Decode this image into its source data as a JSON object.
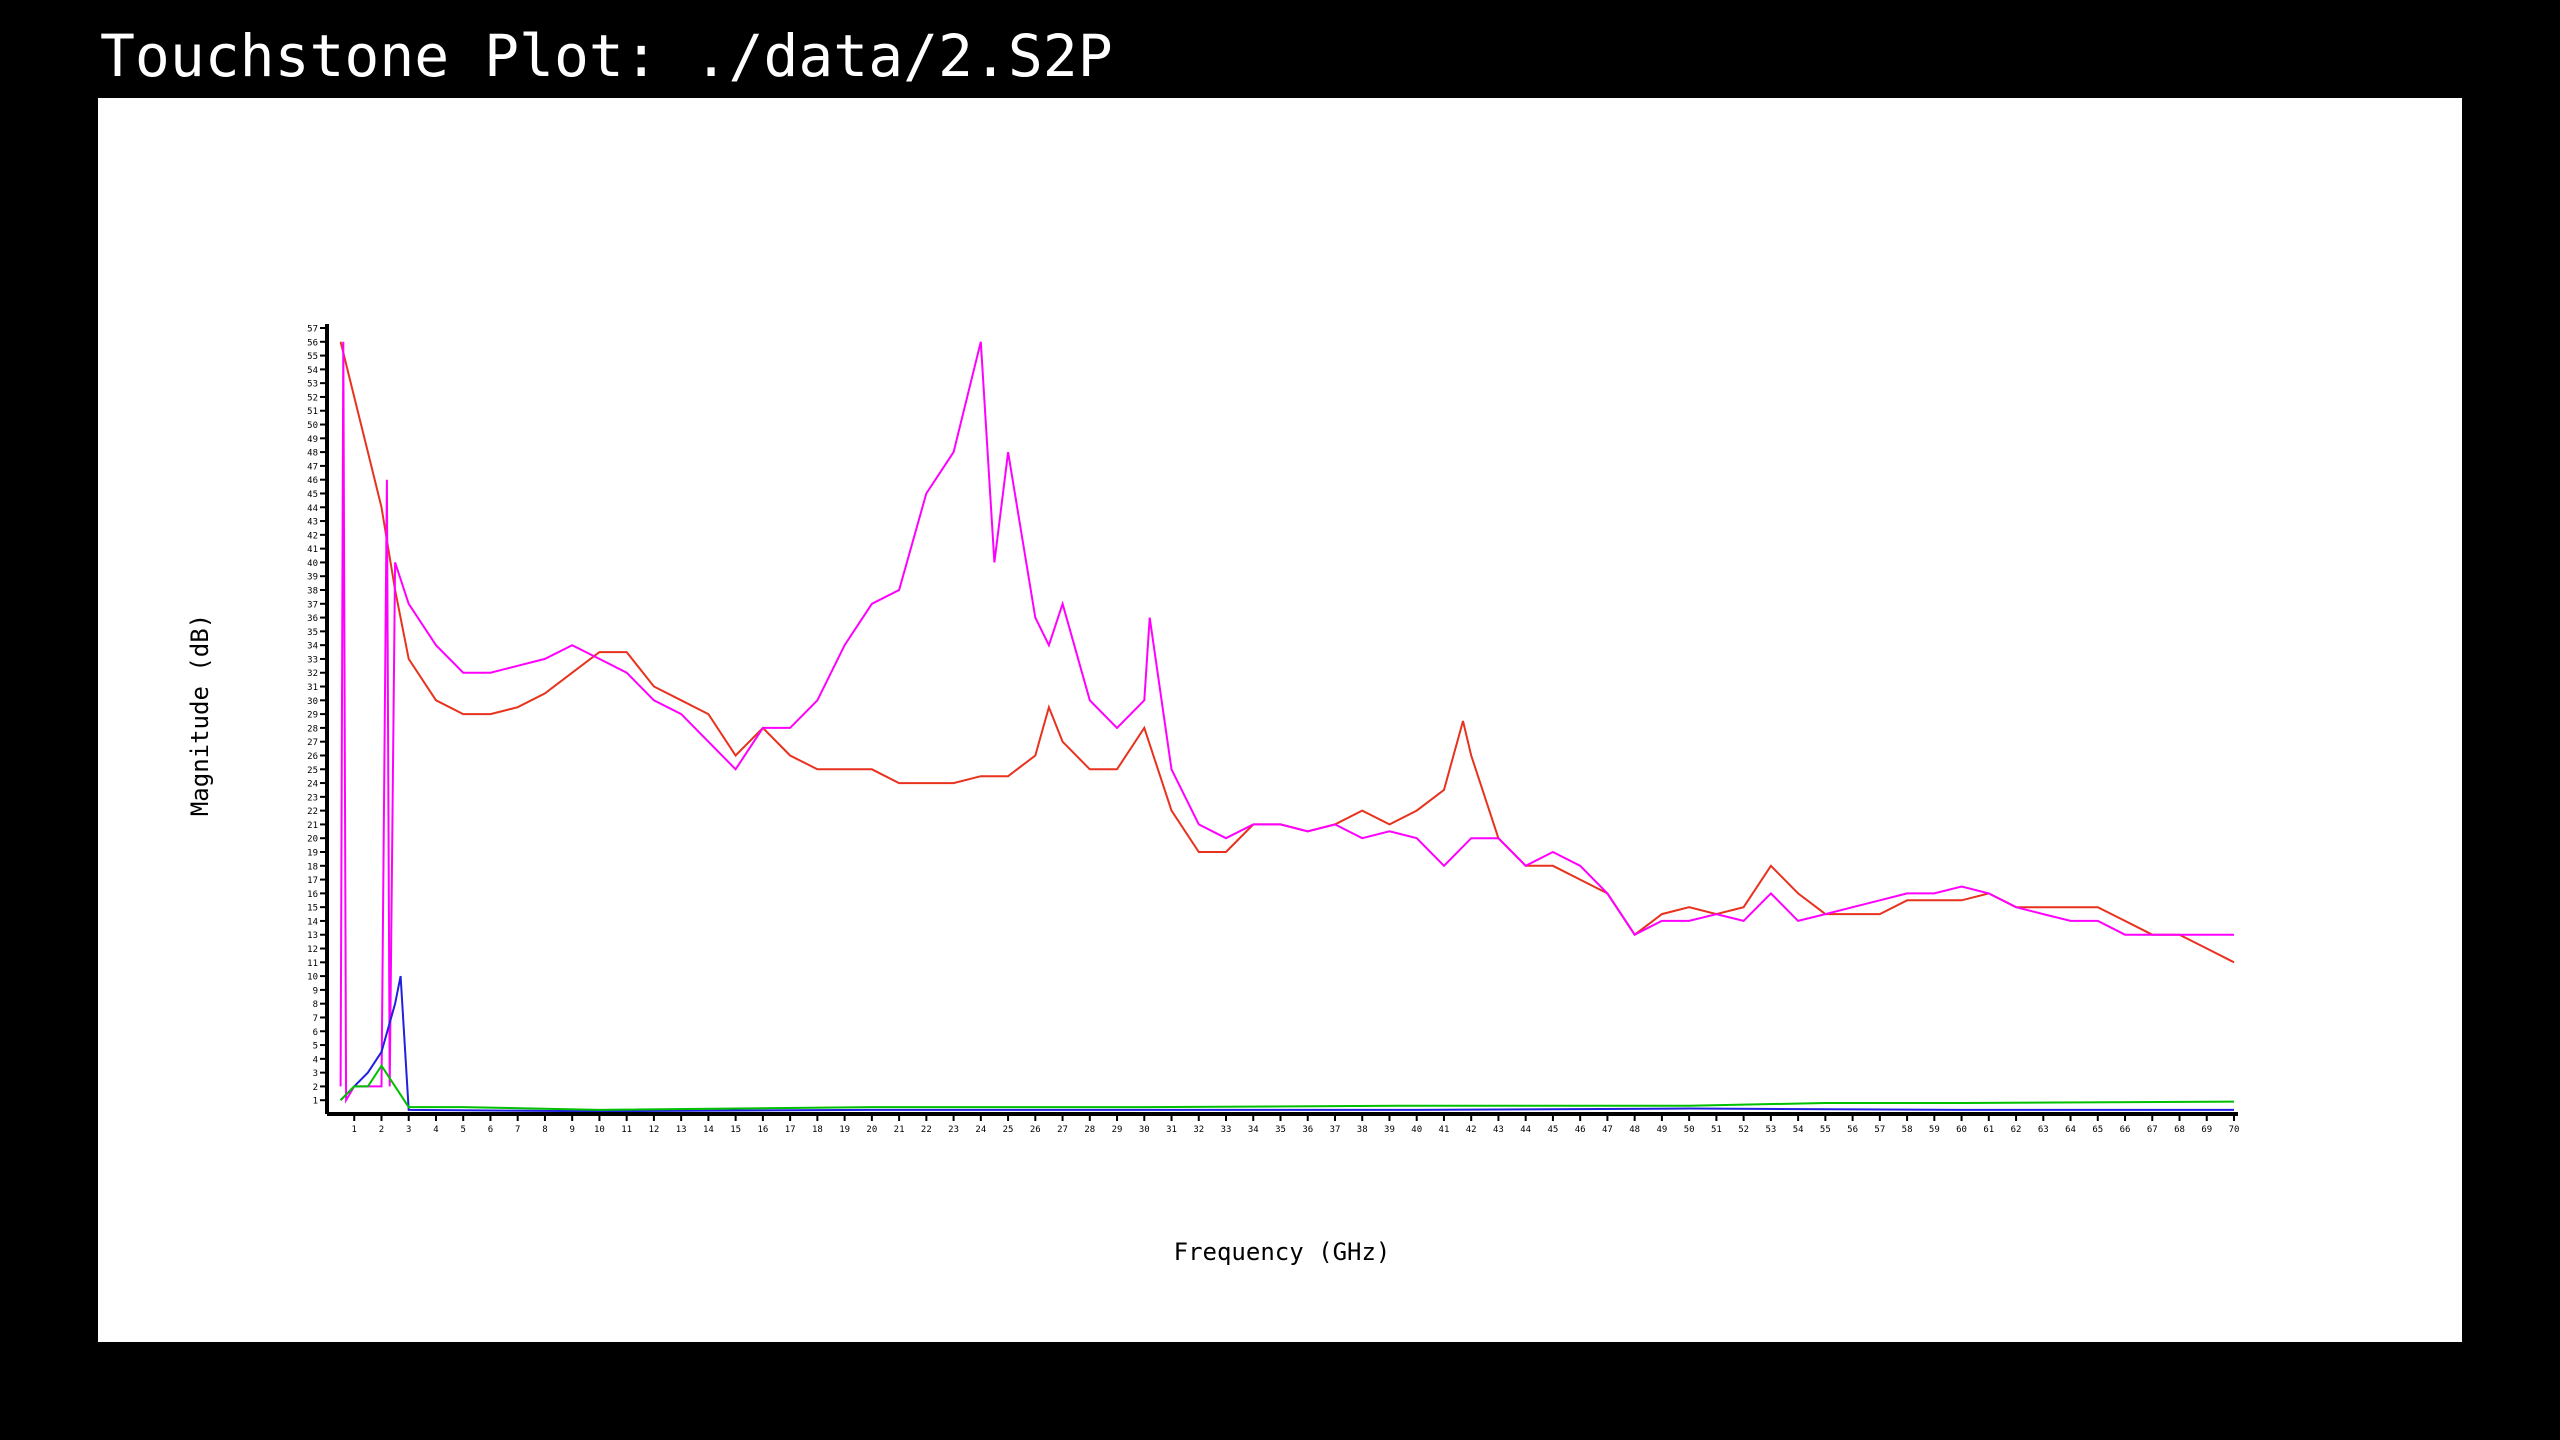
{
  "title": "Touchstone Plot: ./data/2.S2P",
  "chart_data": {
    "type": "line",
    "x_label": "Frequency (GHz)",
    "y_label": "Magnitude (dB)",
    "xlim": [
      0,
      70
    ],
    "ylim": [
      0,
      57
    ],
    "xticks": [
      1,
      2,
      3,
      4,
      5,
      6,
      7,
      8,
      9,
      10,
      11,
      12,
      13,
      14,
      15,
      16,
      17,
      18,
      19,
      20,
      21,
      22,
      23,
      24,
      25,
      26,
      27,
      28,
      29,
      30,
      31,
      32,
      33,
      34,
      35,
      36,
      37,
      38,
      39,
      40,
      41,
      42,
      43,
      44,
      45,
      46,
      47,
      48,
      49,
      50,
      51,
      52,
      53,
      54,
      55,
      56,
      57,
      58,
      59,
      60,
      61,
      62,
      63,
      64,
      65,
      66,
      67,
      68,
      69,
      70
    ],
    "yticks": [
      1,
      2,
      3,
      4,
      5,
      6,
      7,
      8,
      9,
      10,
      11,
      12,
      13,
      14,
      15,
      16,
      17,
      18,
      19,
      20,
      21,
      22,
      23,
      24,
      25,
      26,
      27,
      28,
      29,
      30,
      31,
      32,
      33,
      34,
      35,
      36,
      37,
      38,
      39,
      40,
      41,
      42,
      43,
      44,
      45,
      46,
      47,
      48,
      49,
      50,
      51,
      52,
      53,
      54,
      55,
      56,
      57
    ],
    "series": [
      {
        "color": "#e8321e",
        "x": [
          0.5,
          1,
          1.5,
          2,
          2.5,
          3,
          4,
          5,
          6,
          7,
          8,
          9,
          10,
          11,
          12,
          13,
          14,
          15,
          16,
          17,
          18,
          19,
          20,
          21,
          22,
          23,
          24,
          25,
          26,
          26.5,
          27,
          28,
          29,
          30,
          31,
          32,
          33,
          34,
          35,
          36,
          37,
          38,
          39,
          40,
          41,
          41.7,
          42,
          43,
          44,
          45,
          46,
          47,
          48,
          49,
          50,
          51,
          52,
          53,
          54,
          55,
          56,
          57,
          58,
          59,
          60,
          61,
          62,
          63,
          64,
          65,
          66,
          67,
          68,
          69,
          70
        ],
        "values": [
          56,
          52,
          48,
          44,
          38,
          33,
          30,
          29,
          29,
          29.5,
          30.5,
          32,
          33.5,
          33.5,
          31,
          30,
          29,
          26,
          28,
          26,
          25,
          25,
          25,
          24,
          24,
          24,
          24.5,
          24.5,
          26,
          29.5,
          27,
          25,
          25,
          28,
          22,
          19,
          19,
          21,
          21,
          20.5,
          21,
          22,
          21,
          22,
          23.5,
          28.5,
          26,
          20,
          18,
          18,
          17,
          16,
          13,
          14.5,
          15,
          14.5,
          15,
          18,
          16,
          14.5,
          14.5,
          14.5,
          15.5,
          15.5,
          15.5,
          16,
          15,
          15,
          15,
          15,
          14,
          13,
          13,
          12,
          11
        ]
      },
      {
        "color": "#ff00ff",
        "x": [
          0.5,
          0.6,
          0.7,
          1,
          1.5,
          2,
          2.2,
          2.3,
          2.5,
          3,
          4,
          5,
          6,
          7,
          8,
          9,
          10,
          11,
          12,
          13,
          14,
          15,
          16,
          17,
          18,
          19,
          20,
          21,
          22,
          23,
          24,
          24.5,
          25,
          26,
          26.5,
          27,
          28,
          29,
          30,
          30.2,
          31,
          32,
          33,
          34,
          35,
          36,
          37,
          38,
          39,
          40,
          41,
          42,
          43,
          44,
          45,
          46,
          47,
          48,
          49,
          50,
          51,
          52,
          53,
          54,
          55,
          56,
          57,
          58,
          59,
          60,
          61,
          62,
          63,
          64,
          65,
          66,
          67,
          68,
          69,
          70
        ],
        "values": [
          2,
          56,
          1,
          2,
          2,
          2,
          46,
          2,
          40,
          37,
          34,
          32,
          32,
          32.5,
          33,
          34,
          33,
          32,
          30,
          29,
          27,
          25,
          28,
          28,
          30,
          34,
          37,
          38,
          45,
          48,
          56,
          40,
          48,
          36,
          34,
          37,
          30,
          28,
          30,
          36,
          25,
          21,
          20,
          21,
          21,
          20.5,
          21,
          20,
          20.5,
          20,
          18,
          20,
          20,
          18,
          19,
          18,
          16,
          13,
          14,
          14,
          14.5,
          14,
          16,
          14,
          14.5,
          15,
          15.5,
          16,
          16,
          16.5,
          16,
          15,
          14.5,
          14,
          14,
          13,
          13,
          13,
          13,
          13
        ]
      },
      {
        "color": "#2020e0",
        "x": [
          0.5,
          1,
          1.5,
          2,
          2.5,
          2.7,
          3,
          10,
          20,
          30,
          40,
          50,
          60,
          70
        ],
        "values": [
          1,
          2,
          3,
          4.5,
          8,
          10,
          0.3,
          0.2,
          0.3,
          0.3,
          0.3,
          0.4,
          0.3,
          0.3
        ]
      },
      {
        "color": "#00c000",
        "x": [
          0.5,
          1,
          1.5,
          2,
          2.5,
          3,
          5,
          10,
          20,
          30,
          40,
          50,
          55,
          60,
          70
        ],
        "values": [
          1,
          2,
          2,
          3.5,
          2,
          0.5,
          0.5,
          0.3,
          0.5,
          0.5,
          0.6,
          0.6,
          0.8,
          0.8,
          0.9
        ]
      }
    ]
  }
}
